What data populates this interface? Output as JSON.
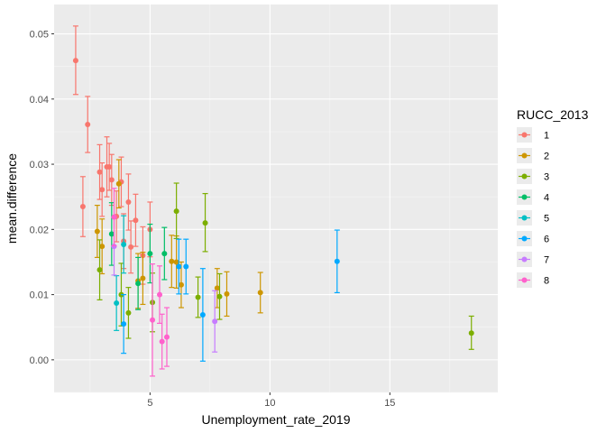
{
  "chart_data": {
    "type": "scatter",
    "title": "",
    "xlabel": "Unemployment_rate_2019",
    "ylabel": "mean.difference",
    "xlim": [
      1.0,
      19.5
    ],
    "ylim": [
      -0.005,
      0.0545
    ],
    "x_ticks": [
      5,
      10,
      15
    ],
    "x_tick_labels": [
      "5",
      "10",
      "15"
    ],
    "y_ticks": [
      0.0,
      0.01,
      0.02,
      0.03,
      0.04,
      0.05
    ],
    "y_tick_labels": [
      "0.00",
      "0.01",
      "0.02",
      "0.03",
      "0.04",
      "0.05"
    ],
    "grid": true,
    "error_bars": true,
    "legend": {
      "title": "RUCC_2013",
      "position": "right",
      "entries": [
        "1",
        "2",
        "3",
        "4",
        "5",
        "6",
        "7",
        "8"
      ]
    },
    "series": [
      {
        "name": "1",
        "color": "#F8766D",
        "points": [
          {
            "x": 1.9,
            "y": 0.0459,
            "lo": 0.0407,
            "hi": 0.0512
          },
          {
            "x": 2.4,
            "y": 0.0361,
            "lo": 0.0318,
            "hi": 0.0404
          },
          {
            "x": 2.2,
            "y": 0.0235,
            "lo": 0.0189,
            "hi": 0.0281
          },
          {
            "x": 2.9,
            "y": 0.0288,
            "lo": 0.0246,
            "hi": 0.033
          },
          {
            "x": 3.0,
            "y": 0.0261,
            "lo": 0.022,
            "hi": 0.0302
          },
          {
            "x": 3.2,
            "y": 0.0296,
            "lo": 0.025,
            "hi": 0.0342
          },
          {
            "x": 3.3,
            "y": 0.0296,
            "lo": 0.026,
            "hi": 0.0332
          },
          {
            "x": 3.4,
            "y": 0.0276,
            "lo": 0.0237,
            "hi": 0.0315
          },
          {
            "x": 3.6,
            "y": 0.022,
            "lo": 0.0181,
            "hi": 0.0259
          },
          {
            "x": 3.8,
            "y": 0.0273,
            "lo": 0.0235,
            "hi": 0.0311
          },
          {
            "x": 3.9,
            "y": 0.0182,
            "lo": 0.014,
            "hi": 0.0224
          },
          {
            "x": 4.1,
            "y": 0.0242,
            "lo": 0.0199,
            "hi": 0.0285
          },
          {
            "x": 4.2,
            "y": 0.0173,
            "lo": 0.0133,
            "hi": 0.0213
          },
          {
            "x": 4.4,
            "y": 0.0214,
            "lo": 0.0174,
            "hi": 0.0254
          },
          {
            "x": 4.7,
            "y": 0.016,
            "lo": 0.0116,
            "hi": 0.0204
          },
          {
            "x": 5.0,
            "y": 0.02,
            "lo": 0.0158,
            "hi": 0.0242
          }
        ]
      },
      {
        "name": "2",
        "color": "#CD9600",
        "points": [
          {
            "x": 2.8,
            "y": 0.0197,
            "lo": 0.0157,
            "hi": 0.0237
          },
          {
            "x": 3.0,
            "y": 0.0174,
            "lo": 0.0132,
            "hi": 0.0216
          },
          {
            "x": 3.7,
            "y": 0.027,
            "lo": 0.0233,
            "hi": 0.0307
          },
          {
            "x": 4.5,
            "y": 0.0121,
            "lo": 0.0079,
            "hi": 0.0163
          },
          {
            "x": 4.7,
            "y": 0.0125,
            "lo": 0.0085,
            "hi": 0.0165
          },
          {
            "x": 5.9,
            "y": 0.0151,
            "lo": 0.0111,
            "hi": 0.0191
          },
          {
            "x": 6.1,
            "y": 0.015,
            "lo": 0.011,
            "hi": 0.019
          },
          {
            "x": 6.3,
            "y": 0.0115,
            "lo": 0.008,
            "hi": 0.015
          },
          {
            "x": 7.8,
            "y": 0.011,
            "lo": 0.008,
            "hi": 0.014
          },
          {
            "x": 8.2,
            "y": 0.0101,
            "lo": 0.0067,
            "hi": 0.0135
          },
          {
            "x": 9.6,
            "y": 0.0103,
            "lo": 0.0072,
            "hi": 0.0134
          }
        ]
      },
      {
        "name": "3",
        "color": "#7CAE00",
        "points": [
          {
            "x": 2.9,
            "y": 0.0138,
            "lo": 0.0092,
            "hi": 0.0184
          },
          {
            "x": 3.8,
            "y": 0.01,
            "lo": 0.0052,
            "hi": 0.0148
          },
          {
            "x": 4.1,
            "y": 0.0072,
            "lo": 0.0033,
            "hi": 0.0111
          },
          {
            "x": 5.1,
            "y": 0.0088,
            "lo": 0.0043,
            "hi": 0.0133
          },
          {
            "x": 6.1,
            "y": 0.0228,
            "lo": 0.0186,
            "hi": 0.0271
          },
          {
            "x": 7.0,
            "y": 0.0096,
            "lo": 0.0065,
            "hi": 0.0127
          },
          {
            "x": 7.3,
            "y": 0.021,
            "lo": 0.0166,
            "hi": 0.0255
          },
          {
            "x": 7.9,
            "y": 0.0097,
            "lo": 0.0062,
            "hi": 0.0132
          },
          {
            "x": 18.4,
            "y": 0.0041,
            "lo": 0.0016,
            "hi": 0.0067
          }
        ]
      },
      {
        "name": "4",
        "color": "#00BE67",
        "points": [
          {
            "x": 3.4,
            "y": 0.0193,
            "lo": 0.0145,
            "hi": 0.0241
          },
          {
            "x": 4.5,
            "y": 0.0117,
            "lo": 0.0077,
            "hi": 0.0157
          },
          {
            "x": 5.0,
            "y": 0.0163,
            "lo": 0.0118,
            "hi": 0.0208
          },
          {
            "x": 5.6,
            "y": 0.0163,
            "lo": 0.0123,
            "hi": 0.0203
          }
        ]
      },
      {
        "name": "5",
        "color": "#00BFC4",
        "points": [
          {
            "x": 3.6,
            "y": 0.0087,
            "lo": 0.0045,
            "hi": 0.0129
          },
          {
            "x": 3.9,
            "y": 0.0177,
            "lo": 0.0133,
            "hi": 0.0221
          }
        ]
      },
      {
        "name": "6",
        "color": "#00A9FF",
        "points": [
          {
            "x": 3.9,
            "y": 0.0055,
            "lo": 0.001,
            "hi": 0.01
          },
          {
            "x": 6.2,
            "y": 0.0143,
            "lo": 0.0101,
            "hi": 0.0185
          },
          {
            "x": 6.5,
            "y": 0.0143,
            "lo": 0.0101,
            "hi": 0.0185
          },
          {
            "x": 7.2,
            "y": 0.0069,
            "lo": -0.0002,
            "hi": 0.014
          },
          {
            "x": 12.8,
            "y": 0.0151,
            "lo": 0.0103,
            "hi": 0.0199
          }
        ]
      },
      {
        "name": "7",
        "color": "#C77CFF",
        "points": [
          {
            "x": 3.5,
            "y": 0.0174,
            "lo": 0.013,
            "hi": 0.0218
          },
          {
            "x": 7.7,
            "y": 0.0059,
            "lo": 0.0012,
            "hi": 0.0106
          }
        ]
      },
      {
        "name": "8",
        "color": "#FF61CC",
        "points": [
          {
            "x": 3.5,
            "y": 0.0219,
            "lo": 0.0175,
            "hi": 0.0263
          },
          {
            "x": 5.1,
            "y": 0.0061,
            "lo": -0.0025,
            "hi": 0.0147
          },
          {
            "x": 5.4,
            "y": 0.01,
            "lo": 0.0056,
            "hi": 0.0144
          },
          {
            "x": 5.5,
            "y": 0.0028,
            "lo": -0.0014,
            "hi": 0.007
          },
          {
            "x": 5.7,
            "y": 0.0035,
            "lo": -0.001,
            "hi": 0.008
          }
        ]
      }
    ]
  }
}
